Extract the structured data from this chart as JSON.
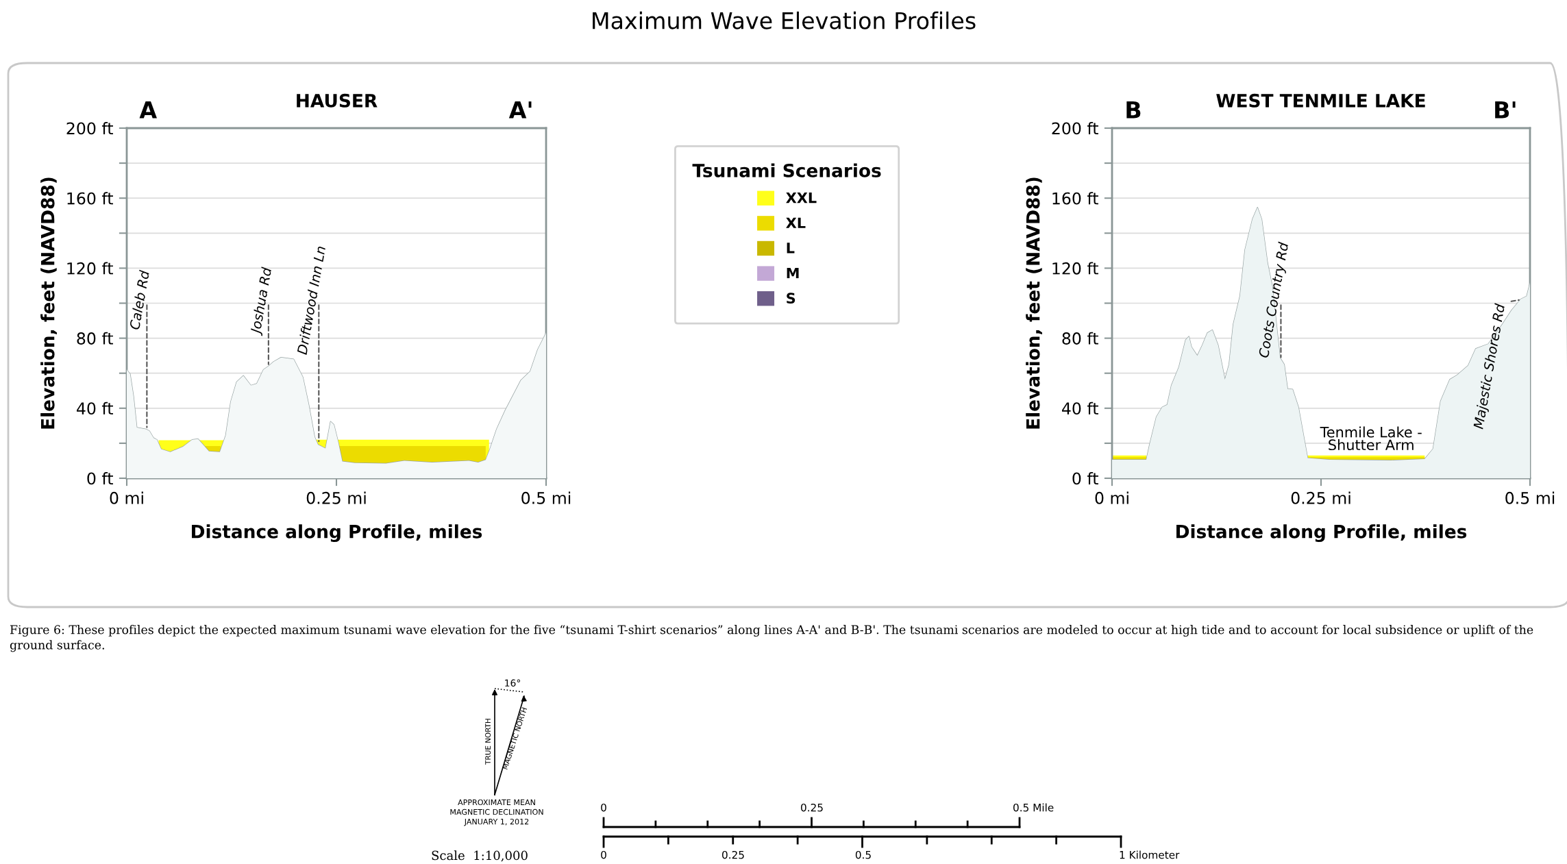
{
  "chart_data": [
    {
      "type": "area",
      "title": "HAUSER",
      "xlabel": "Distance along Profile, miles",
      "ylabel": "Elevation, feet (NAVD88)",
      "xlim": [
        0,
        0.5
      ],
      "xticks": [
        {
          "value": 0,
          "label": "0 mi"
        },
        {
          "value": 0.25,
          "label": "0.25 mi"
        },
        {
          "value": 0.5,
          "label": "0.5 mi"
        }
      ],
      "ylim": [
        0,
        200
      ],
      "yticks": [
        {
          "value": 0,
          "label": "0 ft"
        },
        {
          "value": 20,
          "label": null
        },
        {
          "value": 40,
          "label": "40 ft"
        },
        {
          "value": 60,
          "label": null
        },
        {
          "value": 80,
          "label": "80 ft"
        },
        {
          "value": 100,
          "label": null
        },
        {
          "value": 120,
          "label": "120 ft"
        },
        {
          "value": 140,
          "label": null
        },
        {
          "value": 160,
          "label": "160 ft"
        },
        {
          "value": 180,
          "label": null
        },
        {
          "value": 200,
          "label": "200 ft"
        }
      ],
      "grid": "y",
      "legend": "right",
      "legend_title": "Tsunami Scenarios",
      "series": [
        {
          "color": "#f4f8f8",
          "x": [
            0,
            0.004,
            0.008,
            0.012,
            0.023,
            0.027,
            0.032,
            0.036,
            0.041,
            0.052,
            0.067,
            0.078,
            0.085,
            0.091,
            0.098,
            0.111,
            0.118,
            0.124,
            0.131,
            0.139,
            0.148,
            0.155,
            0.163,
            0.169,
            0.175,
            0.184,
            0.199,
            0.21,
            0.217,
            0.224,
            0.228,
            0.237,
            0.243,
            0.247,
            0.252,
            0.257,
            0.272,
            0.309,
            0.331,
            0.364,
            0.408,
            0.419,
            0.428,
            0.433,
            0.441,
            0.451,
            0.47,
            0.481,
            0.49,
            0.5
          ],
          "values": [
            62,
            59.5,
            47,
            29,
            28,
            27,
            23,
            22,
            16.6,
            15,
            18,
            22,
            22.4,
            19.2,
            15.4,
            15,
            24.5,
            43.7,
            55,
            58.6,
            53,
            54,
            62,
            64,
            66.5,
            69,
            68,
            57.7,
            42,
            23.6,
            19.2,
            17,
            32.4,
            30.6,
            21,
            9.6,
            8.7,
            8.4,
            10,
            9,
            10,
            9,
            10.5,
            16.6,
            28,
            38.5,
            56,
            61,
            73.5,
            83
          ]
        },
        {
          "name": "XXL",
          "color": "#ffff1a",
          "x": [
            0.038,
            0.117,
            0.118,
            0.224,
            0.432
          ],
          "values": [
            21.7,
            21.7,
            null,
            22,
            22
          ]
        },
        {
          "name": "XL",
          "color": "#ecdc00",
          "x": [
            0.093,
            0.112,
            0.113,
            0.252,
            0.428
          ],
          "values": [
            18.4,
            18.4,
            null,
            18.4,
            18.4
          ]
        },
        {
          "name": "L",
          "color": "#c9b800"
        },
        {
          "name": "M",
          "color": "#c3a8d6"
        },
        {
          "name": "S",
          "color": "#6f5f8a"
        }
      ],
      "annotations": [
        "A",
        "A'",
        {
          "text": "Caleb Rd",
          "x": 0.024,
          "y": 28
        },
        {
          "text": "Joshua Rd",
          "x": 0.169,
          "y": 64
        },
        {
          "text": "Driftwood Inn Ln",
          "x": 0.229,
          "y": 20
        }
      ]
    },
    {
      "type": "area",
      "title": "WEST TENMILE LAKE",
      "xlabel": "Distance along Profile, miles",
      "ylabel": "Elevation, feet (NAVD88)",
      "xlim": [
        0,
        0.5
      ],
      "xticks": [
        {
          "value": 0,
          "label": "0 mi"
        },
        {
          "value": 0.25,
          "label": "0.25 mi"
        },
        {
          "value": 0.5,
          "label": "0.5 mi"
        }
      ],
      "ylim": [
        0,
        200
      ],
      "yticks": [
        {
          "value": 0,
          "label": "0 ft"
        },
        {
          "value": 20,
          "label": null
        },
        {
          "value": 40,
          "label": "40 ft"
        },
        {
          "value": 60,
          "label": null
        },
        {
          "value": 80,
          "label": "80 ft"
        },
        {
          "value": 100,
          "label": null
        },
        {
          "value": 120,
          "label": "120 ft"
        },
        {
          "value": 140,
          "label": null
        },
        {
          "value": 160,
          "label": "160 ft"
        },
        {
          "value": 180,
          "label": null
        },
        {
          "value": 200,
          "label": "200 ft"
        }
      ],
      "grid": "y",
      "series": [
        {
          "color": "#edf4f4",
          "x": [
            0,
            0.041,
            0.045,
            0.053,
            0.06,
            0.066,
            0.071,
            0.08,
            0.088,
            0.092,
            0.095,
            0.102,
            0.108,
            0.114,
            0.12,
            0.127,
            0.135,
            0.14,
            0.145,
            0.153,
            0.159,
            0.168,
            0.174,
            0.179,
            0.186,
            0.192,
            0.201,
            0.206,
            0.21,
            0.216,
            0.223,
            0.234,
            0.26,
            0.334,
            0.374,
            0.384,
            0.393,
            0.404,
            0.413,
            0.426,
            0.435,
            0.45,
            0.467,
            0.478,
            0.489,
            0.496,
            0.5
          ],
          "values": [
            10.6,
            10.6,
            19.4,
            35,
            40.6,
            42,
            53,
            63.5,
            79,
            81,
            75,
            70,
            76,
            83,
            84.7,
            75.8,
            56.4,
            65,
            88,
            104,
            130.5,
            148,
            154.7,
            148,
            123,
            109,
            68.8,
            65,
            51,
            50.8,
            40.6,
            11.5,
            10.6,
            10.2,
            11,
            16.8,
            44,
            56.4,
            59,
            64.4,
            74,
            76.7,
            88,
            96,
            102.3,
            104,
            111.5
          ]
        },
        {
          "color": "#ffff1a",
          "x": [
            0,
            0.041,
            0.042,
            0.234,
            0.374
          ],
          "values": [
            13,
            13,
            null,
            13,
            13
          ]
        },
        {
          "color": "#ecdc00",
          "x": [
            0,
            0.041,
            0.042,
            0.234,
            0.374
          ],
          "values": [
            12,
            12,
            null,
            12,
            12
          ]
        }
      ],
      "annotations": [
        "B",
        "B'",
        "Tenmile Lake -\nShutter Arm",
        {
          "text": "Coots Country Rd",
          "x": 0.202,
          "y": 68
        },
        {
          "text": "Majestic Shores Rd",
          "x": 0.489,
          "y": 102
        }
      ]
    },
    {
      "type": "other",
      "title": "Maximum Wave Elevation Profiles",
      "annotations": [
        "Figure 6: These profiles depict the expected maximum tsunami wave elevation for the five “tsunami T-shirt scenarios” along lines A-A' and B-B'. The tsunami scenarios are modeled to occur at high tide and to account for local subsidence or uplift of the ground surface.",
        "TRUE NORTH",
        "MAGNETIC NORTH",
        "16°",
        "APPROXIMATE MEAN\nMAGNETIC DECLINATION\nJANUARY 1, 2012",
        "Scale  1:10,000",
        "0",
        "0.25",
        "0.5 Mile",
        "0",
        "0.25",
        "0.5",
        "1 Kilometer"
      ]
    }
  ]
}
